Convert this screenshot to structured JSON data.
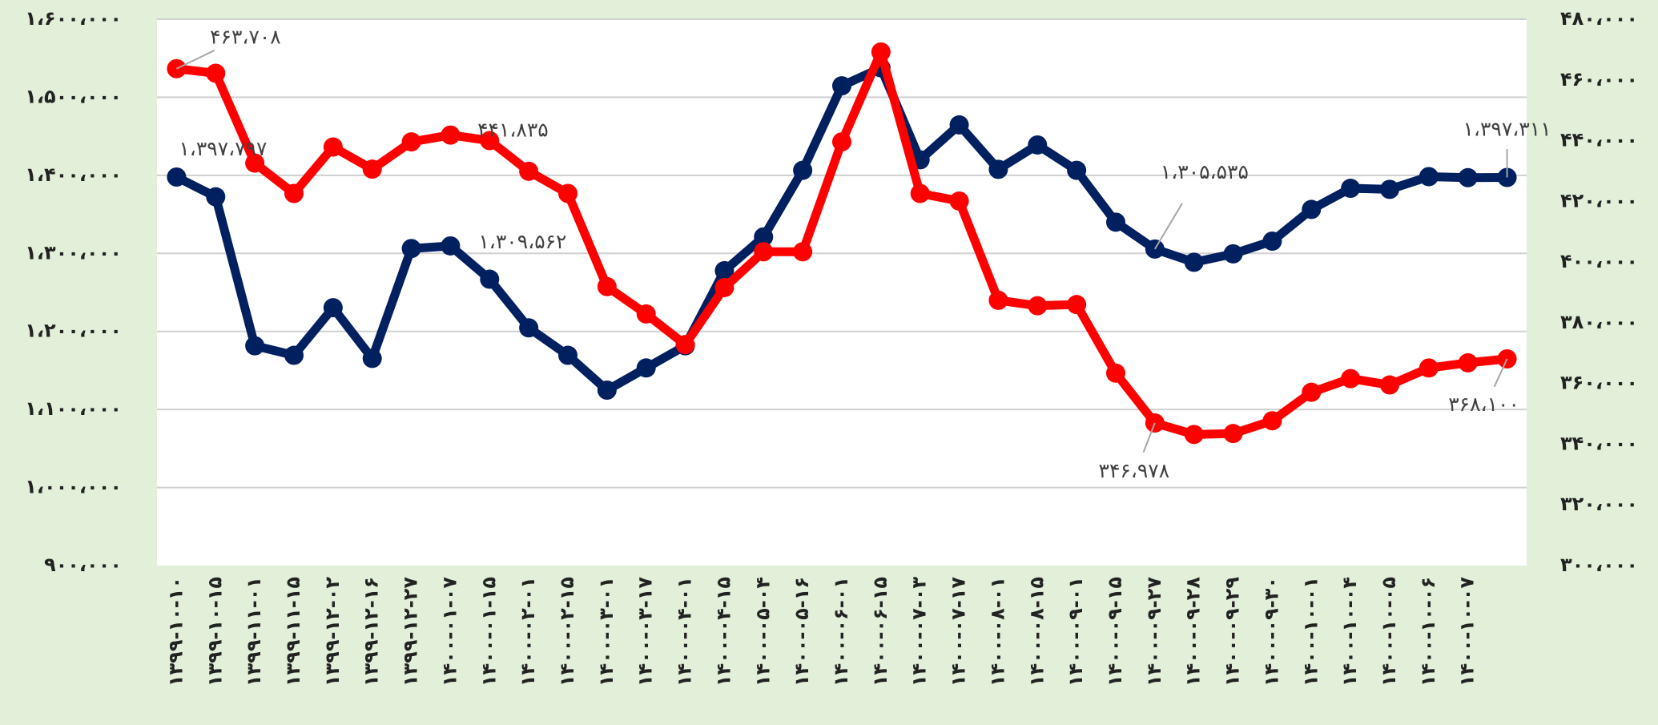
{
  "chart_data": {
    "type": "line",
    "categories": [
      "۱۳۹۹-۱۰-۱۰",
      "۱۳۹۹-۱۰-۱۵",
      "۱۳۹۹-۱۱-۰۱",
      "۱۳۹۹-۱۱-۱۵",
      "۱۳۹۹-۱۲-۰۲",
      "۱۳۹۹-۱۲-۱۶",
      "۱۳۹۹-۱۲-۲۷",
      "۱۴۰۰-۰۱-۰۷",
      "۱۴۰۰-۰۱-۱۵",
      "۱۴۰۰-۰۲-۰۱",
      "۱۴۰۰-۰۲-۱۵",
      "۱۴۰۰-۰۳-۰۱",
      "۱۴۰۰-۰۳-۱۷",
      "۱۴۰۰-۰۴-۰۱",
      "۱۴۰۰-۰۴-۱۵",
      "۱۴۰۰-۰۵-۰۴",
      "۱۴۰۰-۰۵-۱۶",
      "۱۴۰۰-۰۶-۰۱",
      "۱۴۰۰-۰۶-۱۵",
      "۱۴۰۰-۰۷-۰۳",
      "۱۴۰۰-۰۷-۱۷",
      "۱۴۰۰-۰۸-۰۱",
      "۱۴۰۰-۰۸-۱۵",
      "۱۴۰۰-۰۹-۰۱",
      "۱۴۰۰-۰۹-۱۵",
      "۱۴۰۰-۰۹-۲۷",
      "۱۴۰۰-۰۹-۲۸",
      "۱۴۰۰-۰۹-۲۹",
      "۱۴۰۰-۰۹-۳۰",
      "۱۴۰۰-۱۰-۰۱",
      "۱۴۰۰-۱۰-۰۴",
      "۱۴۰۰-۱۰-۰۵",
      "۱۴۰۰-۱۰-۰۶",
      "۱۴۰۰-۱۰-۰۷",
      null
    ],
    "series": [
      {
        "color": "#002060",
        "axis": "y",
        "values": [
          1397797,
          1372500,
          1181600,
          1169400,
          1230400,
          1165400,
          1306200,
          1309562,
          1266900,
          1204600,
          1169400,
          1124800,
          1153200,
          1181600,
          1277800,
          1321100,
          1406400,
          1514700,
          1537700,
          1419900,
          1464600,
          1407700,
          1438900,
          1406400,
          1340000,
          1305535,
          1288600,
          1299400,
          1315700,
          1356300,
          1383400,
          1382000,
          1398300,
          1397000,
          1397311
        ],
        "value_labels": [
          "۱،۳۹۷،۷۹۷",
          null,
          null,
          null,
          null,
          null,
          null,
          "۱،۳۰۹،۵۶۲",
          null,
          null,
          null,
          null,
          null,
          null,
          null,
          null,
          null,
          null,
          null,
          null,
          null,
          null,
          null,
          null,
          null,
          "۱،۳۰۵،۵۳۵",
          null,
          null,
          null,
          null,
          null,
          null,
          null,
          null,
          "۱،۳۹۷،۳۱۱"
        ]
      },
      {
        "color": "#ff0000",
        "axis": "y2",
        "values": [
          463708,
          462200,
          432600,
          422600,
          437900,
          430600,
          439600,
          441835,
          440000,
          429900,
          422600,
          391900,
          382900,
          372800,
          391600,
          403400,
          403400,
          439600,
          469200,
          422600,
          420100,
          387400,
          385600,
          386000,
          363400,
          346978,
          343200,
          343500,
          347700,
          357100,
          361600,
          359500,
          365100,
          366800,
          368100
        ],
        "value_labels": [
          "۴۶۳،۷۰۸",
          null,
          null,
          null,
          null,
          null,
          null,
          "۴۴۱،۸۳۵",
          null,
          null,
          null,
          null,
          null,
          null,
          null,
          null,
          null,
          null,
          null,
          null,
          null,
          null,
          null,
          null,
          null,
          "۳۴۶،۹۷۸",
          null,
          null,
          null,
          null,
          null,
          null,
          null,
          null,
          "۳۶۸،۱۰۰"
        ]
      }
    ],
    "ylim": [
      900000,
      1600000
    ],
    "yticks": [
      {
        "value": 900000,
        "label": "۹۰۰،۰۰۰"
      },
      {
        "value": 1000000,
        "label": "۱،۰۰۰،۰۰۰"
      },
      {
        "value": 1100000,
        "label": "۱،۱۰۰،۰۰۰"
      },
      {
        "value": 1200000,
        "label": "۱،۲۰۰،۰۰۰"
      },
      {
        "value": 1300000,
        "label": "۱،۳۰۰،۰۰۰"
      },
      {
        "value": 1400000,
        "label": "۱،۴۰۰،۰۰۰"
      },
      {
        "value": 1500000,
        "label": "۱،۵۰۰،۰۰۰"
      },
      {
        "value": 1600000,
        "label": "۱،۶۰۰،۰۰۰"
      }
    ],
    "y2lim": [
      300000,
      480000
    ],
    "y2ticks": [
      {
        "value": 300000,
        "label": "۳۰۰،۰۰۰"
      },
      {
        "value": 320000,
        "label": "۳۲۰،۰۰۰"
      },
      {
        "value": 340000,
        "label": "۳۴۰،۰۰۰"
      },
      {
        "value": 360000,
        "label": "۳۶۰،۰۰۰"
      },
      {
        "value": 380000,
        "label": "۳۸۰،۰۰۰"
      },
      {
        "value": 400000,
        "label": "۴۰۰،۰۰۰"
      },
      {
        "value": 420000,
        "label": "۴۲۰،۰۰۰"
      },
      {
        "value": 440000,
        "label": "۴۴۰،۰۰۰"
      },
      {
        "value": 460000,
        "label": "۴۶۰،۰۰۰"
      },
      {
        "value": 480000,
        "label": "۴۸۰،۰۰۰"
      }
    ],
    "grid": true
  }
}
